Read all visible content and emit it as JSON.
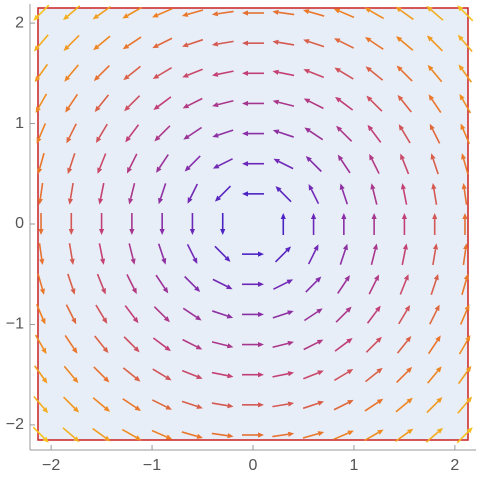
{
  "chart_data": {
    "type": "vector",
    "x": [
      -2.1,
      -1.8,
      -1.5,
      -1.2,
      -0.9,
      -0.6,
      -0.3,
      0,
      0.3,
      0.6,
      0.9,
      1.2,
      1.5,
      1.8,
      2.1
    ],
    "y": [
      -2.1,
      -1.8,
      -1.5,
      -1.2,
      -0.9,
      -0.6,
      -0.3,
      0,
      0.3,
      0.6,
      0.9,
      1.2,
      1.5,
      1.8,
      2.1
    ],
    "u": [
      [
        2.1,
        2.1,
        2.1,
        2.1,
        2.1,
        2.1,
        2.1,
        2.1,
        2.1,
        2.1,
        2.1,
        2.1,
        2.1,
        2.1,
        2.1
      ],
      [
        1.8,
        1.8,
        1.8,
        1.8,
        1.8,
        1.8,
        1.8,
        1.8,
        1.8,
        1.8,
        1.8,
        1.8,
        1.8,
        1.8,
        1.8
      ],
      [
        1.5,
        1.5,
        1.5,
        1.5,
        1.5,
        1.5,
        1.5,
        1.5,
        1.5,
        1.5,
        1.5,
        1.5,
        1.5,
        1.5,
        1.5
      ],
      [
        1.2,
        1.2,
        1.2,
        1.2,
        1.2,
        1.2,
        1.2,
        1.2,
        1.2,
        1.2,
        1.2,
        1.2,
        1.2,
        1.2,
        1.2
      ],
      [
        0.9,
        0.9,
        0.9,
        0.9,
        0.9,
        0.9,
        0.9,
        0.9,
        0.9,
        0.9,
        0.9,
        0.9,
        0.9,
        0.9,
        0.9
      ],
      [
        0.6,
        0.6,
        0.6,
        0.6,
        0.6,
        0.6,
        0.6,
        0.6,
        0.6,
        0.6,
        0.6,
        0.6,
        0.6,
        0.6,
        0.6
      ],
      [
        0.3,
        0.3,
        0.3,
        0.3,
        0.3,
        0.3,
        0.3,
        0.3,
        0.3,
        0.3,
        0.3,
        0.3,
        0.3,
        0.3,
        0.3
      ],
      [
        0,
        0,
        0,
        0,
        0,
        0,
        0,
        0,
        0,
        0,
        0,
        0,
        0,
        0,
        0
      ],
      [
        -0.3,
        -0.3,
        -0.3,
        -0.3,
        -0.3,
        -0.3,
        -0.3,
        -0.3,
        -0.3,
        -0.3,
        -0.3,
        -0.3,
        -0.3,
        -0.3,
        -0.3
      ],
      [
        -0.6,
        -0.6,
        -0.6,
        -0.6,
        -0.6,
        -0.6,
        -0.6,
        -0.6,
        -0.6,
        -0.6,
        -0.6,
        -0.6,
        -0.6,
        -0.6,
        -0.6
      ],
      [
        -0.9,
        -0.9,
        -0.9,
        -0.9,
        -0.9,
        -0.9,
        -0.9,
        -0.9,
        -0.9,
        -0.9,
        -0.9,
        -0.9,
        -0.9,
        -0.9,
        -0.9
      ],
      [
        -1.2,
        -1.2,
        -1.2,
        -1.2,
        -1.2,
        -1.2,
        -1.2,
        -1.2,
        -1.2,
        -1.2,
        -1.2,
        -1.2,
        -1.2,
        -1.2,
        -1.2
      ],
      [
        -1.5,
        -1.5,
        -1.5,
        -1.5,
        -1.5,
        -1.5,
        -1.5,
        -1.5,
        -1.5,
        -1.5,
        -1.5,
        -1.5,
        -1.5,
        -1.5,
        -1.5
      ],
      [
        -1.8,
        -1.8,
        -1.8,
        -1.8,
        -1.8,
        -1.8,
        -1.8,
        -1.8,
        -1.8,
        -1.8,
        -1.8,
        -1.8,
        -1.8,
        -1.8,
        -1.8
      ],
      [
        -2.1,
        -2.1,
        -2.1,
        -2.1,
        -2.1,
        -2.1,
        -2.1,
        -2.1,
        -2.1,
        -2.1,
        -2.1,
        -2.1,
        -2.1,
        -2.1,
        -2.1
      ]
    ],
    "v": [
      [
        -2.1,
        -1.8,
        -1.5,
        -1.2,
        -0.9,
        -0.6,
        -0.3,
        0,
        0.3,
        0.6,
        0.9,
        1.2,
        1.5,
        1.8,
        2.1
      ],
      [
        -2.1,
        -1.8,
        -1.5,
        -1.2,
        -0.9,
        -0.6,
        -0.3,
        0,
        0.3,
        0.6,
        0.9,
        1.2,
        1.5,
        1.8,
        2.1
      ],
      [
        -2.1,
        -1.8,
        -1.5,
        -1.2,
        -0.9,
        -0.6,
        -0.3,
        0,
        0.3,
        0.6,
        0.9,
        1.2,
        1.5,
        1.8,
        2.1
      ],
      [
        -2.1,
        -1.8,
        -1.5,
        -1.2,
        -0.9,
        -0.6,
        -0.3,
        0,
        0.3,
        0.6,
        0.9,
        1.2,
        1.5,
        1.8,
        2.1
      ],
      [
        -2.1,
        -1.8,
        -1.5,
        -1.2,
        -0.9,
        -0.6,
        -0.3,
        0,
        0.3,
        0.6,
        0.9,
        1.2,
        1.5,
        1.8,
        2.1
      ],
      [
        -2.1,
        -1.8,
        -1.5,
        -1.2,
        -0.9,
        -0.6,
        -0.3,
        0,
        0.3,
        0.6,
        0.9,
        1.2,
        1.5,
        1.8,
        2.1
      ],
      [
        -2.1,
        -1.8,
        -1.5,
        -1.2,
        -0.9,
        -0.6,
        -0.3,
        0,
        0.3,
        0.6,
        0.9,
        1.2,
        1.5,
        1.8,
        2.1
      ],
      [
        -2.1,
        -1.8,
        -1.5,
        -1.2,
        -0.9,
        -0.6,
        -0.3,
        0,
        0.3,
        0.6,
        0.9,
        1.2,
        1.5,
        1.8,
        2.1
      ],
      [
        -2.1,
        -1.8,
        -1.5,
        -1.2,
        -0.9,
        -0.6,
        -0.3,
        0,
        0.3,
        0.6,
        0.9,
        1.2,
        1.5,
        1.8,
        2.1
      ],
      [
        -2.1,
        -1.8,
        -1.5,
        -1.2,
        -0.9,
        -0.6,
        -0.3,
        0,
        0.3,
        0.6,
        0.9,
        1.2,
        1.5,
        1.8,
        2.1
      ],
      [
        -2.1,
        -1.8,
        -1.5,
        -1.2,
        -0.9,
        -0.6,
        -0.3,
        0,
        0.3,
        0.6,
        0.9,
        1.2,
        1.5,
        1.8,
        2.1
      ],
      [
        -2.1,
        -1.8,
        -1.5,
        -1.2,
        -0.9,
        -0.6,
        -0.3,
        0,
        0.3,
        0.6,
        0.9,
        1.2,
        1.5,
        1.8,
        2.1
      ],
      [
        -2.1,
        -1.8,
        -1.5,
        -1.2,
        -0.9,
        -0.6,
        -0.3,
        0,
        0.3,
        0.6,
        0.9,
        1.2,
        1.5,
        1.8,
        2.1
      ],
      [
        -2.1,
        -1.8,
        -1.5,
        -1.2,
        -0.9,
        -0.6,
        -0.3,
        0,
        0.3,
        0.6,
        0.9,
        1.2,
        1.5,
        1.8,
        2.1
      ],
      [
        -2.1,
        -1.8,
        -1.5,
        -1.2,
        -0.9,
        -0.6,
        -0.3,
        0,
        0.3,
        0.6,
        0.9,
        1.2,
        1.5,
        1.8,
        2.1
      ]
    ],
    "colors": [
      "#2b1fd0",
      "#7a2ab2",
      "#c03e78",
      "#ec7a24",
      "#f6c21e"
    ],
    "region_color": "#e8eef8",
    "region_border": "#cc2020",
    "xlim": [
      -2.13,
      2.13
    ],
    "ylim": [
      -2.15,
      2.15
    ],
    "xticks": [
      {
        "value": -2,
        "label": "−2"
      },
      {
        "value": -1,
        "label": "−1"
      },
      0,
      1,
      2
    ],
    "yticks": [
      {
        "value": -2,
        "label": "−2"
      },
      {
        "value": -1,
        "label": "−1"
      },
      0,
      1,
      2
    ]
  }
}
